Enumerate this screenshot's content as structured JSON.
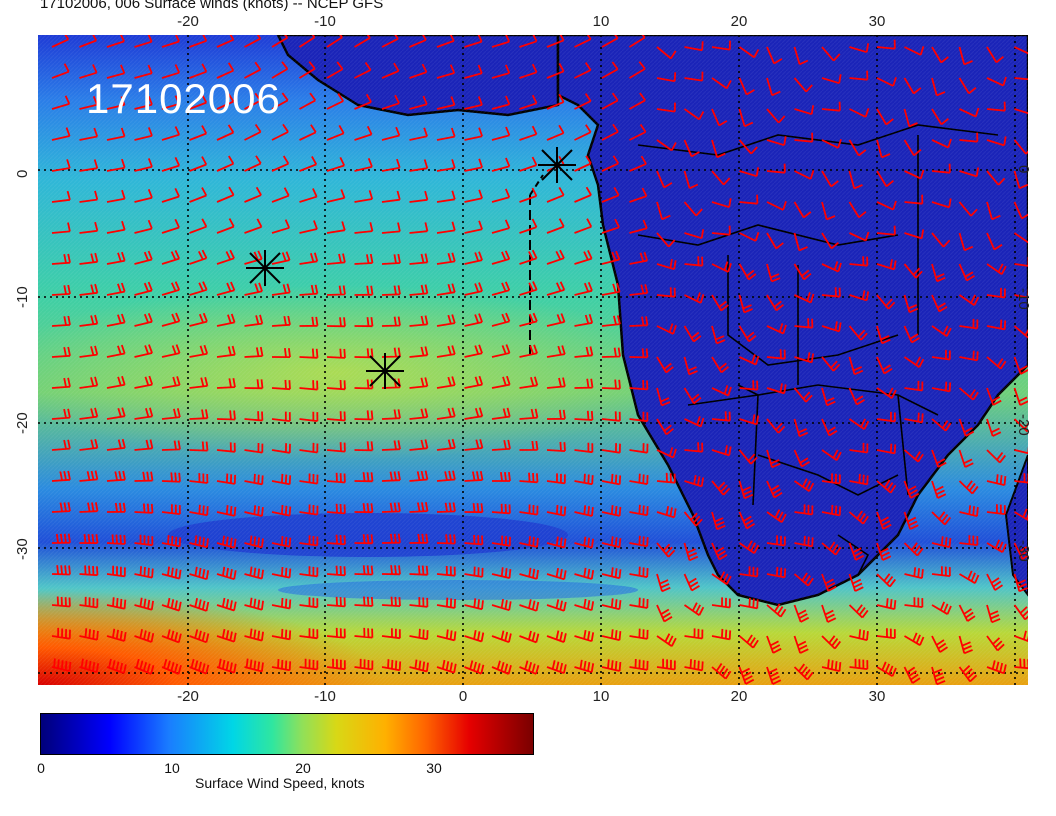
{
  "title": "17102006, 006 Surface winds (knots) -- NCEP GFS",
  "stamp": "17102006",
  "lon_ticks": [
    "-20",
    "-10",
    "0",
    "10",
    "20",
    "30"
  ],
  "lat_ticks": [
    "0",
    "-10",
    "-20",
    "-30"
  ],
  "colorbar": {
    "label": "Surface Wind Speed, knots",
    "ticks": [
      "0",
      "10",
      "20",
      "30"
    ],
    "colors": [
      "#00007a",
      "#0000ff",
      "#1a7dff",
      "#00d6e6",
      "#8fe05a",
      "#d8d816",
      "#ffb000",
      "#ff6600",
      "#e60000",
      "#7a0000"
    ]
  },
  "barb_color": "#ff0000",
  "markers": [
    "asterisk",
    "asterisk",
    "asterisk"
  ]
}
